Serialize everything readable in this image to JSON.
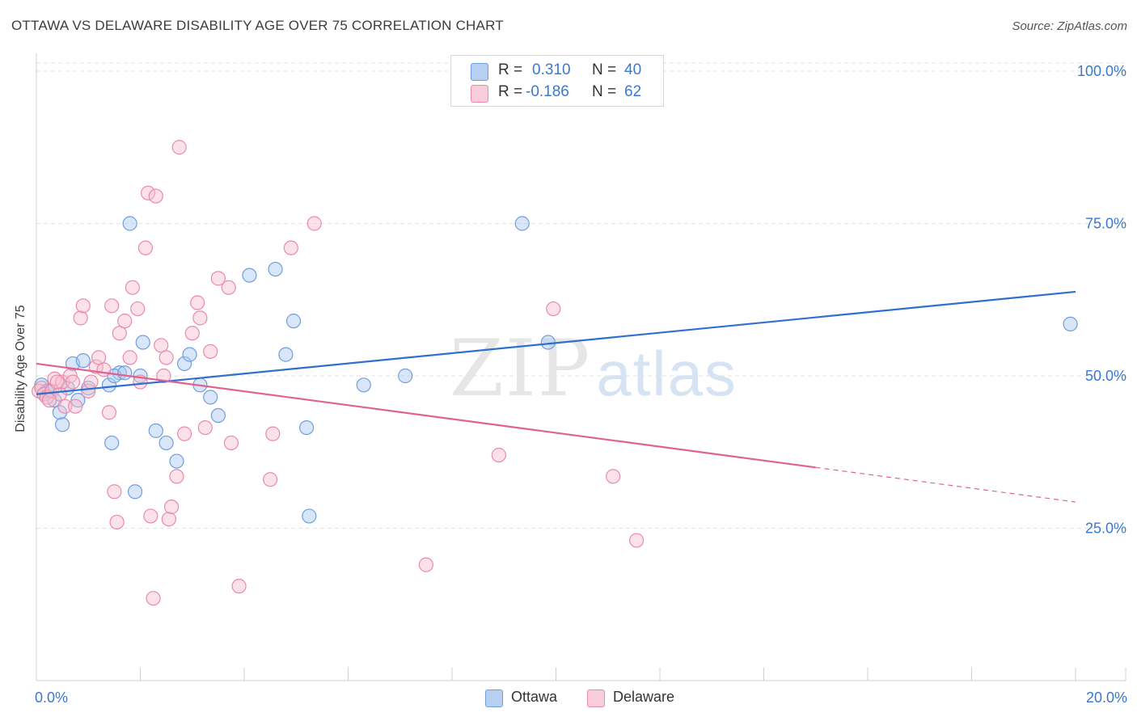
{
  "header": {
    "title": "OTTAWA VS DELAWARE DISABILITY AGE OVER 75 CORRELATION CHART",
    "source": "Source: ZipAtlas.com"
  },
  "watermark": {
    "zip": "ZIP",
    "atlas": "atlas"
  },
  "legend": {
    "rows": [
      {
        "r_label": "R =",
        "r_value": "0.310",
        "n_label": "N =",
        "n_value": "40"
      },
      {
        "r_label": "R =",
        "r_value": "-0.186",
        "n_label": "N =",
        "n_value": "62"
      }
    ]
  },
  "bottom_legend": {
    "ottawa": "Ottawa",
    "delaware": "Delaware"
  },
  "colors": {
    "ottawa_fill": "#a9c7ef",
    "ottawa_stroke": "#6f9ede",
    "ottawa_line": "#2f6fcf",
    "delaware_fill": "#f6bfd0",
    "delaware_stroke": "#e98aaa",
    "delaware_line": "#e0628f",
    "axis_text": "#3a78d0",
    "grid": "#e3e3e3"
  },
  "chart_data": {
    "type": "scatter",
    "title": "OTTAWA VS DELAWARE DISABILITY AGE OVER 75 CORRELATION CHART",
    "xlabel": "",
    "ylabel": "Disability Age Over 75",
    "xlim": [
      0,
      20
    ],
    "ylim": [
      0,
      102
    ],
    "x_tick_labels": [
      "0.0%",
      "20.0%"
    ],
    "y_ticks": [
      25,
      50,
      75,
      100
    ],
    "y_tick_labels": [
      "25.0%",
      "50.0%",
      "75.0%",
      "100.0%"
    ],
    "grid": true,
    "legend_position": "top-center",
    "series": [
      {
        "name": "Ottawa",
        "r": 0.31,
        "n": 40,
        "trend": {
          "x": [
            0,
            20
          ],
          "y": [
            47.0,
            63.8
          ],
          "dashed_from_x": null
        },
        "points": [
          [
            0.1,
            48.5
          ],
          [
            0.2,
            47.5
          ],
          [
            0.35,
            46.0
          ],
          [
            0.45,
            44.0
          ],
          [
            0.5,
            42.0
          ],
          [
            0.6,
            48.0
          ],
          [
            0.7,
            52.0
          ],
          [
            0.8,
            46.0
          ],
          [
            0.9,
            52.5
          ],
          [
            1.0,
            48.0
          ],
          [
            1.4,
            48.5
          ],
          [
            1.6,
            50.5
          ],
          [
            1.5,
            50.0
          ],
          [
            1.7,
            50.5
          ],
          [
            1.8,
            75.0
          ],
          [
            1.9,
            31.0
          ],
          [
            1.45,
            39.0
          ],
          [
            2.0,
            50.0
          ],
          [
            2.05,
            55.5
          ],
          [
            2.3,
            41.0
          ],
          [
            2.5,
            39.0
          ],
          [
            2.7,
            36.0
          ],
          [
            2.85,
            52.0
          ],
          [
            2.95,
            53.5
          ],
          [
            3.15,
            48.5
          ],
          [
            3.35,
            46.5
          ],
          [
            3.5,
            43.5
          ],
          [
            4.1,
            66.5
          ],
          [
            4.6,
            67.5
          ],
          [
            4.8,
            53.5
          ],
          [
            4.95,
            59.0
          ],
          [
            5.2,
            41.5
          ],
          [
            5.25,
            27.0
          ],
          [
            6.3,
            48.5
          ],
          [
            7.1,
            50.0
          ],
          [
            9.35,
            75.0
          ],
          [
            9.85,
            55.5
          ],
          [
            19.9,
            58.5
          ],
          [
            0.25,
            47.5
          ],
          [
            0.15,
            47.0
          ]
        ]
      },
      {
        "name": "Delaware",
        "r": -0.186,
        "n": 62,
        "trend": {
          "x": [
            0,
            20
          ],
          "y": [
            52.0,
            29.3
          ],
          "dashed_from_x": 15.0
        },
        "points": [
          [
            0.05,
            47.5
          ],
          [
            0.1,
            48.0
          ],
          [
            0.15,
            47.0
          ],
          [
            0.2,
            46.5
          ],
          [
            0.3,
            47.5
          ],
          [
            0.35,
            49.5
          ],
          [
            0.45,
            47.0
          ],
          [
            0.5,
            49.0
          ],
          [
            0.55,
            45.0
          ],
          [
            0.65,
            50.0
          ],
          [
            0.7,
            49.0
          ],
          [
            0.75,
            45.0
          ],
          [
            0.85,
            59.5
          ],
          [
            0.9,
            61.5
          ],
          [
            1.0,
            47.5
          ],
          [
            1.05,
            49.0
          ],
          [
            1.15,
            51.5
          ],
          [
            1.2,
            53.0
          ],
          [
            1.3,
            51.0
          ],
          [
            1.4,
            44.0
          ],
          [
            1.45,
            61.5
          ],
          [
            1.5,
            31.0
          ],
          [
            1.55,
            26.0
          ],
          [
            1.6,
            57.0
          ],
          [
            1.7,
            59.0
          ],
          [
            1.8,
            53.0
          ],
          [
            1.85,
            64.5
          ],
          [
            1.95,
            61.0
          ],
          [
            2.0,
            49.0
          ],
          [
            2.1,
            71.0
          ],
          [
            2.15,
            80.0
          ],
          [
            2.2,
            27.0
          ],
          [
            2.25,
            13.5
          ],
          [
            2.3,
            79.5
          ],
          [
            2.4,
            55.0
          ],
          [
            2.45,
            50.0
          ],
          [
            2.5,
            53.0
          ],
          [
            2.55,
            26.5
          ],
          [
            2.6,
            28.5
          ],
          [
            2.7,
            33.5
          ],
          [
            2.75,
            87.5
          ],
          [
            2.85,
            40.5
          ],
          [
            3.0,
            57.0
          ],
          [
            3.1,
            62.0
          ],
          [
            3.15,
            59.5
          ],
          [
            3.25,
            41.5
          ],
          [
            3.35,
            54.0
          ],
          [
            3.5,
            66.0
          ],
          [
            3.7,
            64.5
          ],
          [
            3.75,
            39.0
          ],
          [
            3.9,
            15.5
          ],
          [
            4.5,
            33.0
          ],
          [
            4.55,
            40.5
          ],
          [
            4.9,
            71.0
          ],
          [
            5.35,
            75.0
          ],
          [
            7.5,
            19.0
          ],
          [
            8.9,
            37.0
          ],
          [
            9.95,
            61.0
          ],
          [
            11.1,
            33.5
          ],
          [
            11.55,
            23.0
          ],
          [
            0.25,
            46.0
          ],
          [
            0.4,
            49.0
          ]
        ]
      }
    ]
  }
}
